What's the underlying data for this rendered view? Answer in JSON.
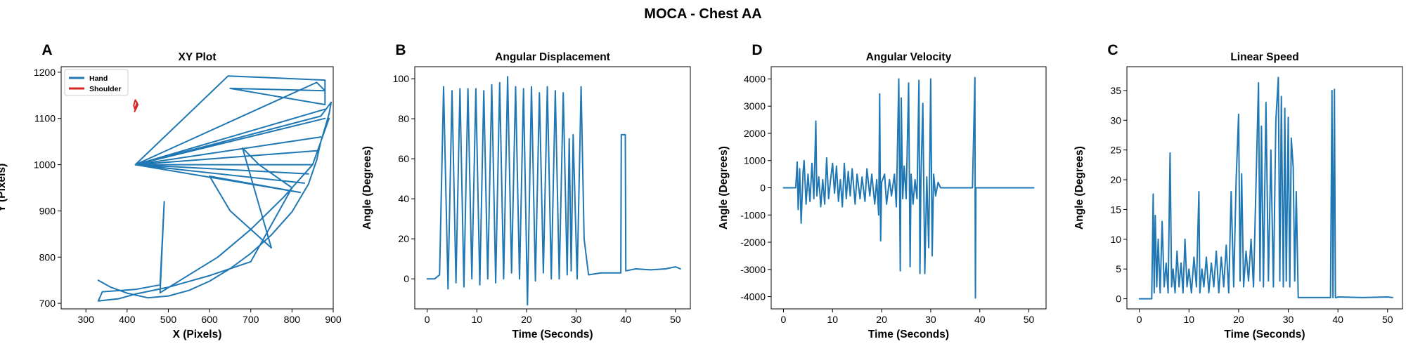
{
  "figure": {
    "title": "MOCA - Chest AA"
  },
  "colors": {
    "hand": "#1f77b4",
    "shoulder": "#d62728",
    "series": "#1f77b4"
  },
  "chart_data": [
    {
      "panel_label": "A",
      "type": "line",
      "title": "XY Plot",
      "xlabel": "X (Pixels)",
      "ylabel": "Y (Pixels)",
      "xlim": [
        240,
        900
      ],
      "ylim": [
        688,
        1212
      ],
      "xticks": [
        300,
        400,
        500,
        600,
        700,
        800,
        900
      ],
      "yticks": [
        700,
        800,
        900,
        1000,
        1100,
        1200
      ],
      "grid": false,
      "legend": {
        "position": "top-left",
        "entries": [
          "Hand",
          "Shoulder"
        ]
      },
      "series": [
        {
          "name": "Hand",
          "x": [
            330,
            360,
            400,
            450,
            500,
            550,
            600,
            650,
            700,
            750,
            800,
            840,
            860,
            870,
            880,
            890,
            895,
            870,
            420,
            645,
            880,
            880,
            650,
            880,
            860,
            420,
            880,
            420,
            880,
            420,
            870,
            420,
            860,
            420,
            850,
            420,
            840,
            420,
            830,
            420,
            820,
            600,
            650,
            700,
            750,
            680,
            720,
            800,
            700,
            600,
            500,
            420,
            380,
            330,
            340,
            420,
            480,
            490,
            480,
            620,
            700,
            780,
            850,
            890
          ],
          "y": [
            750,
            735,
            722,
            712,
            716,
            728,
            748,
            775,
            808,
            848,
            898,
            958,
            1010,
            1050,
            1080,
            1110,
            1135,
            1105,
            1000,
            1192,
            1183,
            1130,
            1165,
            1160,
            1178,
            1000,
            1120,
            1000,
            1100,
            1000,
            1060,
            1000,
            1030,
            1000,
            1000,
            1000,
            980,
            1000,
            960,
            1000,
            940,
            975,
            900,
            860,
            820,
            1036,
            1000,
            950,
            790,
            760,
            735,
            720,
            710,
            705,
            725,
            730,
            740,
            920,
            723,
            800,
            860,
            930,
            1000,
            1100
          ]
        },
        {
          "name": "Shoulder",
          "x": [
            418,
            422,
            426,
            420,
            416,
            419,
            424,
            421
          ],
          "y": [
            1115,
            1122,
            1130,
            1140,
            1128,
            1120,
            1135,
            1125
          ]
        }
      ]
    },
    {
      "panel_label": "B",
      "type": "line",
      "title": "Angular Displacement",
      "xlabel": "Time (Seconds)",
      "ylabel": "Angle (Degrees)",
      "xlim": [
        -2.5,
        53
      ],
      "ylim": [
        -15,
        106
      ],
      "xticks": [
        0,
        10,
        20,
        30,
        40,
        50
      ],
      "yticks": [
        0,
        20,
        40,
        60,
        80,
        100
      ],
      "grid": false,
      "series": [
        {
          "name": "",
          "x": [
            0,
            1.5,
            2.5,
            3.3,
            4.2,
            5.0,
            5.8,
            6.6,
            7.4,
            8.2,
            9.0,
            9.8,
            10.6,
            11.4,
            12.2,
            13.0,
            13.8,
            14.6,
            15.4,
            16.2,
            17.0,
            17.8,
            18.6,
            19.4,
            20.2,
            21.0,
            21.8,
            22.6,
            23.4,
            24.2,
            25.0,
            25.8,
            26.6,
            27.4,
            28.2,
            28.6,
            29.0,
            29.4,
            30.2,
            31.0,
            31.6,
            32.5,
            35,
            38,
            39.0,
            39.1,
            39.9,
            40.0,
            42,
            45,
            48,
            50,
            51
          ],
          "y": [
            0,
            0,
            2,
            96,
            -5,
            94,
            -2,
            95,
            -4,
            95,
            0,
            95,
            -3,
            94,
            0,
            97,
            -2,
            98,
            0,
            101,
            3,
            96,
            0,
            95,
            -13,
            96,
            -1,
            93,
            3,
            96,
            0,
            94,
            0,
            93,
            2,
            70,
            4,
            72,
            0,
            96,
            20,
            2,
            3,
            3,
            3,
            72,
            72,
            4,
            5,
            4.5,
            5,
            6,
            5
          ]
        }
      ]
    },
    {
      "panel_label": "D",
      "type": "line",
      "title": "Angular Velocity",
      "xlabel": "Time (Seconds)",
      "ylabel": "Angle (Degrees)",
      "xlim": [
        -2.5,
        53.5
      ],
      "ylim": [
        -4450,
        4450
      ],
      "xticks": [
        0,
        10,
        20,
        30,
        40,
        50
      ],
      "yticks": [
        -4000,
        -3000,
        -2000,
        -1000,
        0,
        1000,
        2000,
        3000,
        4000
      ],
      "grid": false,
      "series": [
        {
          "name": "",
          "x": [
            0,
            2.5,
            2.8,
            3.0,
            3.3,
            3.6,
            4.0,
            4.2,
            4.6,
            5.0,
            5.4,
            5.8,
            6.2,
            6.6,
            6.8,
            7.2,
            7.6,
            8.0,
            8.4,
            8.8,
            9.2,
            9.6,
            10.0,
            10.4,
            10.8,
            11.2,
            11.6,
            12.0,
            12.4,
            12.8,
            13.2,
            13.6,
            14.0,
            14.6,
            15.0,
            15.6,
            16.0,
            16.6,
            17.0,
            17.6,
            18.0,
            18.6,
            19.0,
            19.4,
            19.6,
            19.8,
            20.0,
            20.6,
            21.0,
            21.6,
            22.0,
            22.6,
            23.0,
            23.5,
            23.8,
            24.0,
            24.3,
            24.6,
            25.0,
            25.5,
            25.8,
            26.0,
            26.4,
            26.8,
            27.2,
            27.6,
            27.8,
            28.0,
            28.4,
            28.8,
            29.2,
            29.6,
            30.0,
            30.3,
            30.6,
            31.0,
            31.5,
            32.0,
            35,
            38.5,
            39.0,
            39.05,
            39.1,
            39.2,
            39.3,
            40,
            45,
            50,
            51
          ],
          "y": [
            0,
            0,
            950,
            -800,
            700,
            -1300,
            600,
            1000,
            -600,
            500,
            -500,
            900,
            -400,
            2450,
            -300,
            400,
            -700,
            300,
            -600,
            1100,
            -400,
            300,
            900,
            -200,
            800,
            -500,
            300,
            -700,
            900,
            -400,
            600,
            -300,
            700,
            -600,
            500,
            -400,
            400,
            -500,
            700,
            -300,
            500,
            -600,
            300,
            -1000,
            3450,
            -1950,
            200,
            500,
            -600,
            300,
            -300,
            500,
            -700,
            4000,
            -3050,
            3300,
            -400,
            800,
            -400,
            3850,
            -2900,
            500,
            -600,
            300,
            -400,
            3950,
            -3150,
            300,
            3100,
            -3150,
            400,
            -2200,
            4000,
            -2500,
            500,
            -300,
            200,
            0,
            0,
            0,
            4050,
            0,
            -4050,
            0,
            0,
            0,
            0,
            0,
            0
          ]
        }
      ]
    },
    {
      "panel_label": "C",
      "type": "line",
      "title": "Linear Speed",
      "xlabel": "Time (Seconds)",
      "ylabel": "Angle (Degrees)",
      "xlim": [
        -2.5,
        53
      ],
      "ylim": [
        -1.7,
        39
      ],
      "xticks": [
        0,
        10,
        20,
        30,
        40,
        50
      ],
      "yticks": [
        0,
        5,
        10,
        15,
        20,
        25,
        30,
        35
      ],
      "grid": false,
      "series": [
        {
          "name": "",
          "x": [
            0,
            2.5,
            2.8,
            3.0,
            3.2,
            3.5,
            3.8,
            4.2,
            4.6,
            5.0,
            5.4,
            5.8,
            6.2,
            6.5,
            6.8,
            7.2,
            7.6,
            8.0,
            8.4,
            8.8,
            9.2,
            9.6,
            10.0,
            10.5,
            11.0,
            11.5,
            12.0,
            12.2,
            12.6,
            13.0,
            13.5,
            14.0,
            14.5,
            15.0,
            15.5,
            16.0,
            16.5,
            17.0,
            17.5,
            18.0,
            18.5,
            19.0,
            19.5,
            20.0,
            20.3,
            20.6,
            21.0,
            21.5,
            22.0,
            22.5,
            23.0,
            23.5,
            24.0,
            24.3,
            24.6,
            25.0,
            25.5,
            26.0,
            26.5,
            27.0,
            27.5,
            28.0,
            28.3,
            28.6,
            29.0,
            29.3,
            29.6,
            30.0,
            30.3,
            30.6,
            31.0,
            31.3,
            31.6,
            32.0,
            35,
            38.5,
            38.8,
            39.0,
            39.3,
            39.5,
            39.7,
            40,
            45,
            50,
            51
          ],
          "y": [
            0,
            0,
            17.6,
            1,
            14,
            2,
            10,
            1,
            13,
            2,
            6,
            1,
            24.5,
            2,
            5,
            1,
            8,
            2,
            6,
            1,
            10,
            2,
            5,
            1,
            7,
            2,
            18,
            1,
            5,
            2,
            7,
            1,
            6,
            2,
            8,
            1,
            7,
            2,
            9,
            1,
            18,
            2,
            20,
            31,
            3,
            21,
            2,
            8,
            3,
            10,
            2,
            19,
            36.3,
            3,
            29,
            2,
            33,
            3,
            25,
            2,
            30,
            37.2,
            3,
            34,
            2,
            32,
            3,
            30.5,
            2,
            27,
            22,
            3,
            18,
            0.2,
            0.2,
            0.2,
            35,
            0.2,
            35.2,
            0.2,
            0.2,
            0.3,
            0.2,
            0.3,
            0.2
          ]
        }
      ]
    }
  ]
}
